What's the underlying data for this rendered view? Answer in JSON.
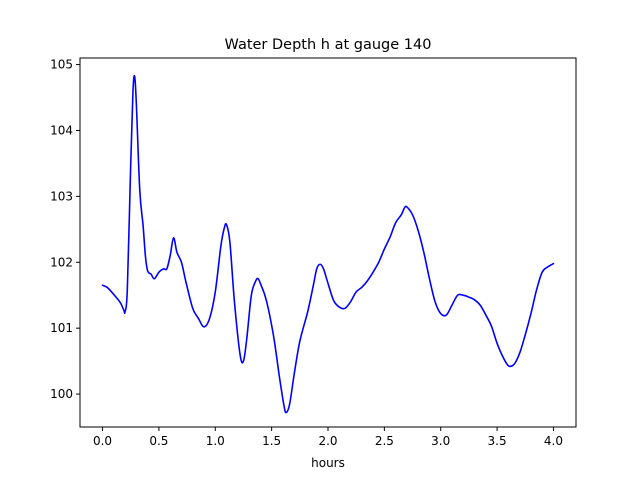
{
  "chart_data": {
    "type": "line",
    "title": "Water Depth h at gauge 140",
    "xlabel": "hours",
    "ylabel": "",
    "xlim": [
      -0.2,
      4.2
    ],
    "ylim": [
      99.5,
      105.1
    ],
    "x_ticks": [
      0.0,
      0.5,
      1.0,
      1.5,
      2.0,
      2.5,
      3.0,
      3.5,
      4.0
    ],
    "x_tick_labels": [
      "0.0",
      "0.5",
      "1.0",
      "1.5",
      "2.0",
      "2.5",
      "3.0",
      "3.5",
      "4.0"
    ],
    "y_ticks": [
      100,
      101,
      102,
      103,
      104,
      105
    ],
    "y_tick_labels": [
      "100",
      "101",
      "102",
      "103",
      "104",
      "105"
    ],
    "grid": false,
    "series": [
      {
        "color": "#0000ff",
        "x": [
          0.0,
          0.04,
          0.08,
          0.12,
          0.16,
          0.19,
          0.2,
          0.22,
          0.25,
          0.27,
          0.285,
          0.3,
          0.33,
          0.36,
          0.38,
          0.4,
          0.43,
          0.46,
          0.5,
          0.54,
          0.57,
          0.6,
          0.63,
          0.66,
          0.7,
          0.74,
          0.8,
          0.85,
          0.9,
          0.95,
          1.0,
          1.05,
          1.08,
          1.1,
          1.13,
          1.17,
          1.22,
          1.25,
          1.28,
          1.32,
          1.36,
          1.38,
          1.4,
          1.44,
          1.47,
          1.52,
          1.57,
          1.61,
          1.63,
          1.66,
          1.7,
          1.75,
          1.82,
          1.87,
          1.9,
          1.93,
          1.96,
          2.0,
          2.05,
          2.1,
          2.15,
          2.2,
          2.25,
          2.3,
          2.35,
          2.4,
          2.45,
          2.5,
          2.55,
          2.6,
          2.65,
          2.68,
          2.7,
          2.75,
          2.8,
          2.85,
          2.9,
          2.95,
          3.0,
          3.05,
          3.1,
          3.15,
          3.2,
          3.25,
          3.3,
          3.35,
          3.4,
          3.45,
          3.5,
          3.55,
          3.6,
          3.65,
          3.7,
          3.75,
          3.8,
          3.85,
          3.9,
          3.95,
          4.0
        ],
        "y": [
          101.65,
          101.62,
          101.55,
          101.47,
          101.38,
          101.27,
          101.25,
          101.6,
          103.5,
          104.6,
          104.82,
          104.4,
          103.1,
          102.55,
          102.1,
          101.87,
          101.82,
          101.75,
          101.85,
          101.9,
          101.9,
          102.1,
          102.37,
          102.15,
          102.0,
          101.7,
          101.3,
          101.15,
          101.02,
          101.15,
          101.55,
          102.25,
          102.52,
          102.57,
          102.3,
          101.4,
          100.6,
          100.5,
          100.85,
          101.5,
          101.72,
          101.75,
          101.68,
          101.5,
          101.3,
          100.85,
          100.25,
          99.82,
          99.72,
          99.85,
          100.3,
          100.8,
          101.25,
          101.65,
          101.9,
          101.97,
          101.9,
          101.68,
          101.42,
          101.32,
          101.3,
          101.4,
          101.55,
          101.62,
          101.72,
          101.85,
          102.0,
          102.2,
          102.38,
          102.6,
          102.72,
          102.83,
          102.84,
          102.72,
          102.48,
          102.15,
          101.75,
          101.4,
          101.22,
          101.2,
          101.35,
          101.5,
          101.5,
          101.47,
          101.43,
          101.35,
          101.2,
          101.03,
          100.77,
          100.57,
          100.43,
          100.45,
          100.62,
          100.9,
          101.22,
          101.58,
          101.85,
          101.93,
          101.98
        ]
      }
    ]
  }
}
